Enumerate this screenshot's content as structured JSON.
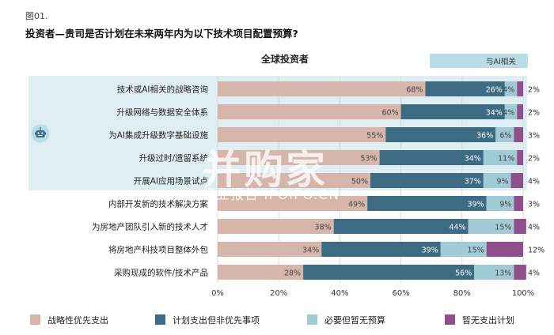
{
  "figure": {
    "label": "图01.",
    "title": "投资者—贵司是否计划在未来两年内为以下技术项目配置预算?",
    "subtitle": "全球投资者",
    "ai_legend_label": "与AI相关",
    "watermark": "并购家",
    "watermark_sub": "行业报告 IPOIPO.CN"
  },
  "colors": {
    "strategic": "#d6b5aa",
    "planned": "#3d6b84",
    "needed": "#9fcad6",
    "none": "#8f4f8c",
    "ai_panel": "#dfeef3",
    "ai_legend": "#b9dce6"
  },
  "chart_data": {
    "type": "bar",
    "orientation": "horizontal",
    "stacked": true,
    "categories": [
      "技术或AI相关的战略咨询",
      "升级网络与数据安全体系",
      "为AI集成升级数字基础设施",
      "升级过时/遗留系统",
      "开展AI应用场景试点",
      "内部开发新的技术解决方案",
      "为房地产团队引入新的技术人才",
      "将房地产科技项目整体外包",
      "采购现成的软件/技术产品"
    ],
    "series": [
      {
        "name": "战略性优先支出",
        "values": [
          68,
          60,
          55,
          53,
          50,
          49,
          38,
          34,
          28
        ],
        "labels": [
          "68%",
          "60%",
          "55%",
          "53%",
          "50%",
          "49%",
          "38%",
          "34%",
          "28%"
        ]
      },
      {
        "name": "计划支出但非优先事项",
        "values": [
          26,
          34,
          36,
          34,
          37,
          39,
          44,
          39,
          56
        ],
        "labels": [
          "26%",
          "34%",
          "36%",
          "34%",
          "37%",
          "39%",
          "44%",
          "39%",
          "56%"
        ]
      },
      {
        "name": "必要但暂无预算",
        "values": [
          4,
          4,
          6,
          11,
          9,
          9,
          15,
          15,
          13
        ],
        "labels": [
          "4%",
          "4%",
          "6%",
          "11%",
          "9%",
          "9%",
          "15%",
          "15%",
          "13%"
        ]
      },
      {
        "name": "暂无支出计划",
        "values": [
          2,
          2,
          3,
          2,
          4,
          3,
          4,
          12,
          4
        ],
        "labels": [
          "2%",
          "2%",
          "3%",
          "2%",
          "4%",
          "3%",
          "4%",
          "12%",
          "4%"
        ]
      }
    ],
    "ai_related_categories": [
      0,
      1,
      2,
      3,
      4
    ],
    "xlim": [
      0,
      100
    ],
    "xticks": [
      "0%",
      "20%",
      "40%",
      "60%",
      "80%",
      "100%"
    ],
    "grid": true,
    "legend_position": "bottom"
  }
}
